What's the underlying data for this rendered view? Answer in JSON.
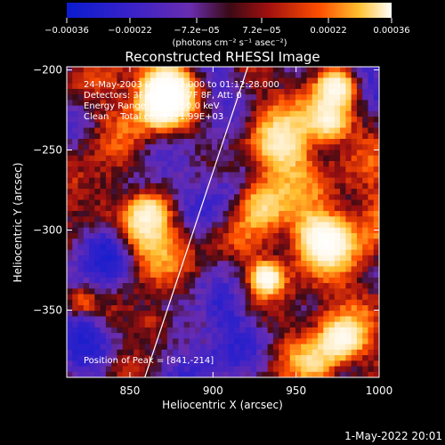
{
  "chart_data": {
    "type": "heatmap",
    "title": "Reconstructed RHESSI Image",
    "xlabel": "Heliocentric X (arcsec)",
    "ylabel": "Heliocentric Y (arcsec)",
    "xlim": [
      812,
      1000
    ],
    "ylim": [
      -392,
      -198
    ],
    "x_ticks": [
      850,
      900,
      950,
      1000
    ],
    "y_ticks": [
      -200,
      -250,
      -300,
      -350
    ],
    "x_tick_labels": [
      "850",
      "900",
      "950",
      "1000"
    ],
    "y_tick_labels": [
      "−200",
      "−250",
      "−300",
      "−350"
    ],
    "colorbar": {
      "range": [
        -0.00036,
        0.00036
      ],
      "tick_values": [
        -0.00036,
        -0.00022,
        -7.2e-05,
        7.2e-05,
        0.00022,
        0.00036
      ],
      "tick_labels": [
        "−0.00036",
        "−0.00022",
        "−7.2e−05",
        "7.2e−05",
        "0.00022",
        "0.00036"
      ],
      "unit_label": "(photons cm⁻² s⁻¹ asec⁻²)"
    },
    "annotations": [
      "24-May-2003 01:09:52.000 to 01:12:28.000",
      "Detectors: 3F 4F 5F 6F 7F 8F, Att: 0",
      "Energy Range: 25.0 - 50.0 keV",
      "Clean    Total counts: 1.99E+03"
    ],
    "peak_label": "Position of Peak = [841,-214]",
    "peak": [
      841,
      -214
    ],
    "limb_line": [
      [
        921,
        -198
      ],
      [
        859,
        -392
      ]
    ],
    "grid": false
  },
  "footer": {
    "timestamp": "1-May-2022 20:01"
  },
  "colors": {
    "background": "#000000",
    "limb": "#ffffff"
  }
}
